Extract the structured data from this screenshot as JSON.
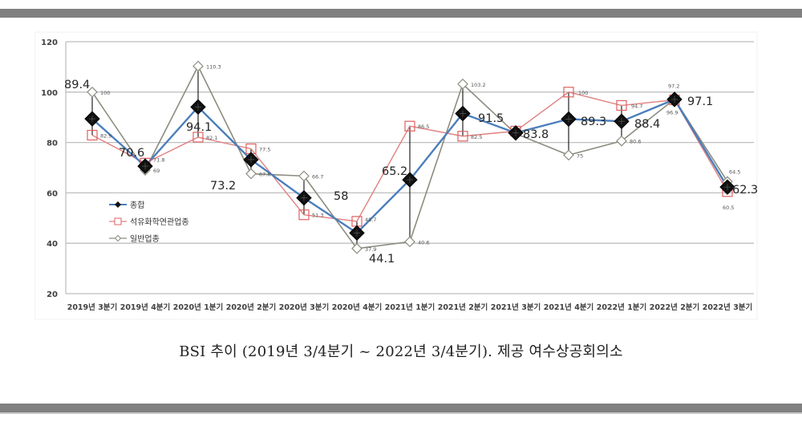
{
  "chart_data": {
    "type": "line",
    "title": "",
    "xlabel": "",
    "ylabel": "",
    "ylim": [
      20,
      120
    ],
    "yticks": [
      20,
      40,
      60,
      80,
      100,
      120
    ],
    "grid": true,
    "legend_position": "inside-left",
    "categories": [
      "2019년 3분기",
      "2019년 4분기",
      "2020년 1분기",
      "2020년 2분기",
      "2020년 3분기",
      "2020년 4분기",
      "2021년 1분기",
      "2021년 2분기",
      "2021년 3분기",
      "2021년 4분기",
      "2022년 1분기",
      "2022년 2분기",
      "2022년 3분기"
    ],
    "series": [
      {
        "name": "종합",
        "color": "#4a7ebb",
        "marker": "filled-diamond",
        "values": [
          89.4,
          70.6,
          94.1,
          73.2,
          58,
          44.1,
          65.2,
          91.5,
          83.8,
          89.3,
          88.4,
          97.1,
          62.3
        ]
      },
      {
        "name": "석유화학연관업종",
        "color": "#e08080",
        "marker": "open-square",
        "values": [
          82.9,
          71.8,
          82.1,
          77.5,
          51.3,
          48.7,
          86.5,
          82.5,
          84.5,
          100,
          94.7,
          96.9,
          60.5
        ]
      },
      {
        "name": "일반업종",
        "color": "#8c8c80",
        "marker": "open-diamond",
        "values": [
          100,
          69,
          110.3,
          67.6,
          66.7,
          37.9,
          40.6,
          103.2,
          83.5,
          75,
          80.6,
          97.2,
          64.5
        ]
      }
    ],
    "annotations": {
      "종합": [
        "89.4",
        "70.6",
        "94.1",
        "73.2",
        "58",
        "44.1",
        "65.2",
        "91.5",
        "83.8",
        "89.3",
        "88.4",
        "97.1",
        "62.3"
      ],
      "석유화학연관업종": [
        "82.9",
        "71.8",
        "82.1",
        "77.5",
        "51.3",
        "48.7",
        "86.5",
        "82.5",
        "",
        "100",
        "94.7",
        "96.9",
        "60.5"
      ],
      "일반업종": [
        "100",
        "69",
        "110.3",
        "67.6",
        "66.7",
        "37.9",
        "40.6",
        "103.2",
        "",
        "75",
        "80.6",
        "97.2",
        "64.5"
      ]
    }
  },
  "caption": "BSI 추이 (2019년 3/4분기 ~ 2022년 3/4분기). 제공 여수상공회의소"
}
